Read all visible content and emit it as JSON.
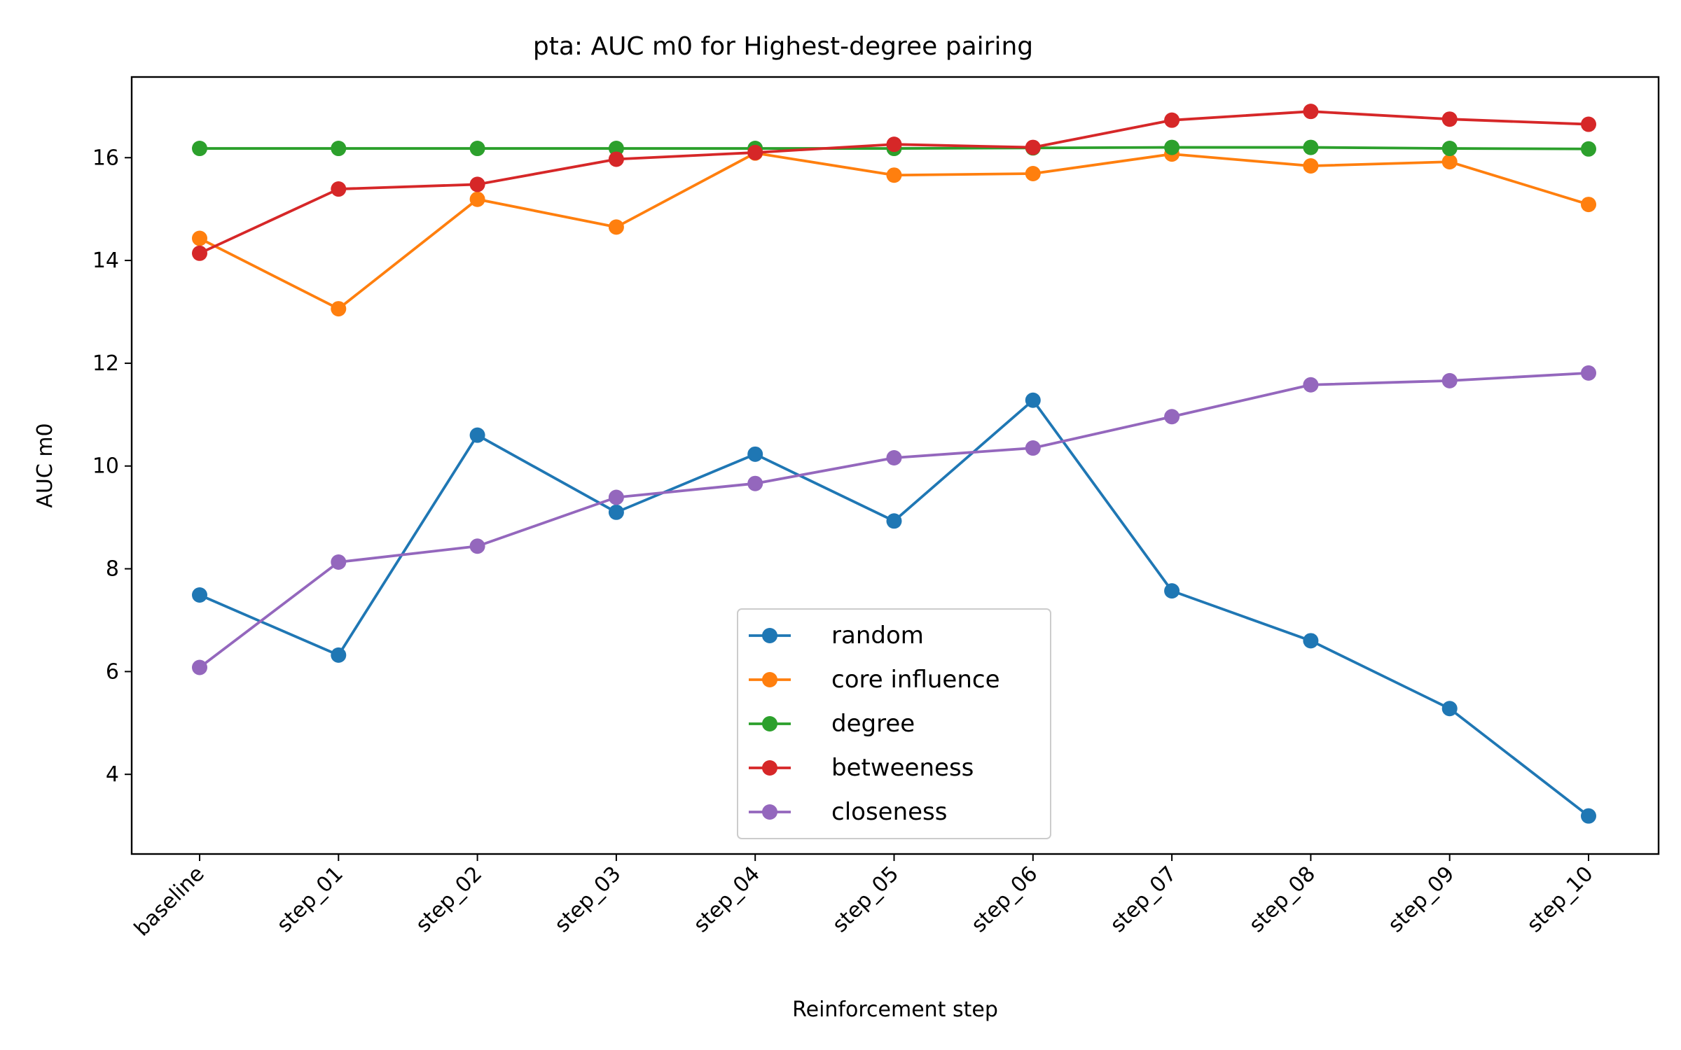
{
  "chart_data": {
    "type": "line",
    "title": "pta: AUC m0 for Highest-degree pairing",
    "xlabel": "Reinforcement step",
    "ylabel": "AUC m0",
    "categories": [
      "baseline",
      "step_01",
      "step_02",
      "step_03",
      "step_04",
      "step_05",
      "step_06",
      "step_07",
      "step_08",
      "step_09",
      "step_10"
    ],
    "ylim": [
      2.45,
      17.57
    ],
    "yticks": [
      4,
      6,
      8,
      10,
      12,
      14,
      16
    ],
    "grid": false,
    "legend_position": "lower center",
    "series": [
      {
        "name": "random",
        "color": "#1f77b4",
        "values": [
          7.49,
          6.32,
          10.6,
          9.1,
          10.23,
          8.93,
          11.28,
          7.57,
          6.6,
          5.28,
          3.19
        ]
      },
      {
        "name": "core influence",
        "color": "#ff7f0e",
        "values": [
          14.43,
          13.06,
          15.19,
          14.65,
          16.09,
          15.66,
          15.69,
          16.07,
          15.84,
          15.92,
          15.09
        ]
      },
      {
        "name": "degree",
        "color": "#2ca02c",
        "values": [
          16.18,
          16.18,
          16.18,
          16.18,
          16.18,
          16.18,
          16.19,
          16.2,
          16.2,
          16.18,
          16.17
        ]
      },
      {
        "name": "betweeness",
        "color": "#d62728",
        "values": [
          14.14,
          15.39,
          15.48,
          15.97,
          16.1,
          16.26,
          16.2,
          16.73,
          16.9,
          16.75,
          16.65
        ]
      },
      {
        "name": "closeness",
        "color": "#9467bd",
        "values": [
          6.08,
          8.13,
          8.44,
          9.39,
          9.66,
          10.16,
          10.35,
          10.96,
          11.58,
          11.66,
          11.81
        ]
      }
    ]
  }
}
